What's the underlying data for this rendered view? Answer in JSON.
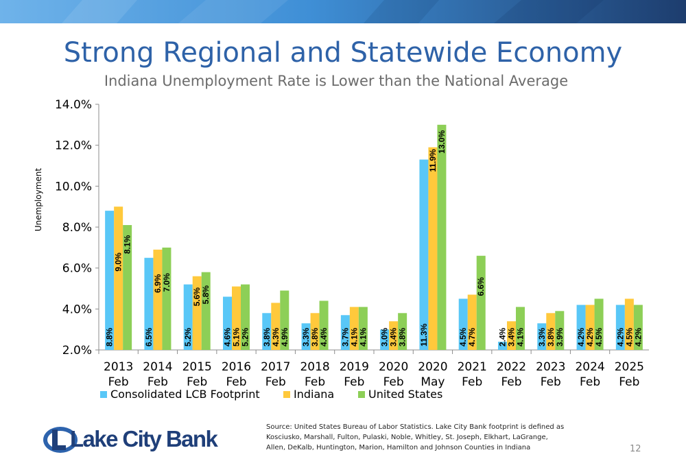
{
  "slide": {
    "title": "Strong Regional and Statewide Economy",
    "subtitle": "Indiana Unemployment Rate is Lower than the National Average",
    "source_text": "Source: United States Bureau of Labor Statistics.  Lake City Bank footprint is defined as Kosciusko, Marshall, Fulton, Pulaski, Noble, Whitley, St. Joseph, Elkhart, LaGrange, Allen, DeKalb, Huntington, Marion, Hamilton and Johnson Counties in Indiana",
    "page_number": "12",
    "logo_text": "Lake City Bank"
  },
  "colors": {
    "title": "#2e62a8",
    "banner_dark": "#1d3d6e",
    "banner_light": "#3f8fd6"
  },
  "chart_data": {
    "type": "bar",
    "title": "",
    "xlabel": "",
    "ylabel": "Unemployment",
    "ylim": [
      2.0,
      14.0
    ],
    "yticks": [
      "2.0%",
      "4.0%",
      "6.0%",
      "8.0%",
      "10.0%",
      "12.0%",
      "14.0%"
    ],
    "ytick_values": [
      2,
      4,
      6,
      8,
      10,
      12,
      14
    ],
    "categories": [
      [
        "2013",
        "Feb"
      ],
      [
        "2014",
        "Feb"
      ],
      [
        "2015",
        "Feb"
      ],
      [
        "2016",
        "Feb"
      ],
      [
        "2017",
        "Feb"
      ],
      [
        "2018",
        "Feb"
      ],
      [
        "2019",
        "Feb"
      ],
      [
        "2020",
        "Feb"
      ],
      [
        "2020",
        "May"
      ],
      [
        "2021",
        "Feb"
      ],
      [
        "2022",
        "Feb"
      ],
      [
        "2023",
        "Feb"
      ],
      [
        "2024",
        "Feb"
      ],
      [
        "2025",
        "Feb"
      ]
    ],
    "legend_position": "bottom",
    "grid": false,
    "series": [
      {
        "name": "Consolidated LCB Footprint",
        "color": "#59c7f7",
        "values": [
          8.8,
          6.5,
          5.2,
          4.6,
          3.8,
          3.3,
          3.7,
          3.0,
          11.3,
          4.5,
          2.4,
          3.3,
          4.2,
          4.2
        ],
        "labels": [
          "8.8%",
          "6.5%",
          "5.2%",
          "4.6%",
          "3.8%",
          "3.3%",
          "3.7%",
          "3.0%",
          "11.3%",
          "4.5%",
          "2.4%",
          "3.3%",
          "4.2%",
          "4.2%"
        ]
      },
      {
        "name": "Indiana",
        "color": "#ffc93c",
        "values": [
          9.0,
          6.9,
          5.6,
          5.1,
          4.3,
          3.8,
          4.1,
          3.4,
          11.9,
          4.7,
          3.4,
          3.8,
          4.2,
          4.5
        ],
        "labels": [
          "9.0%",
          "6.9%",
          "5.6%",
          "5.1%",
          "4.3%",
          "3.8%",
          "4.1%",
          "3.4%",
          "11.9%",
          "4.7%",
          "3.4%",
          "3.8%",
          "4.2%",
          "4.5%"
        ]
      },
      {
        "name": "United States",
        "color": "#8dcf57",
        "values": [
          8.1,
          7.0,
          5.8,
          5.2,
          4.9,
          4.4,
          4.1,
          3.8,
          13.0,
          6.6,
          4.1,
          3.9,
          4.5,
          4.2
        ],
        "labels": [
          "8.1%",
          "7.0%",
          "5.8%",
          "5.2%",
          "4.9%",
          "4.4%",
          "4.1%",
          "3.8%",
          "13.0%",
          "6.6%",
          "4.1%",
          "3.9%",
          "4.5%",
          "4.2%"
        ]
      }
    ]
  }
}
